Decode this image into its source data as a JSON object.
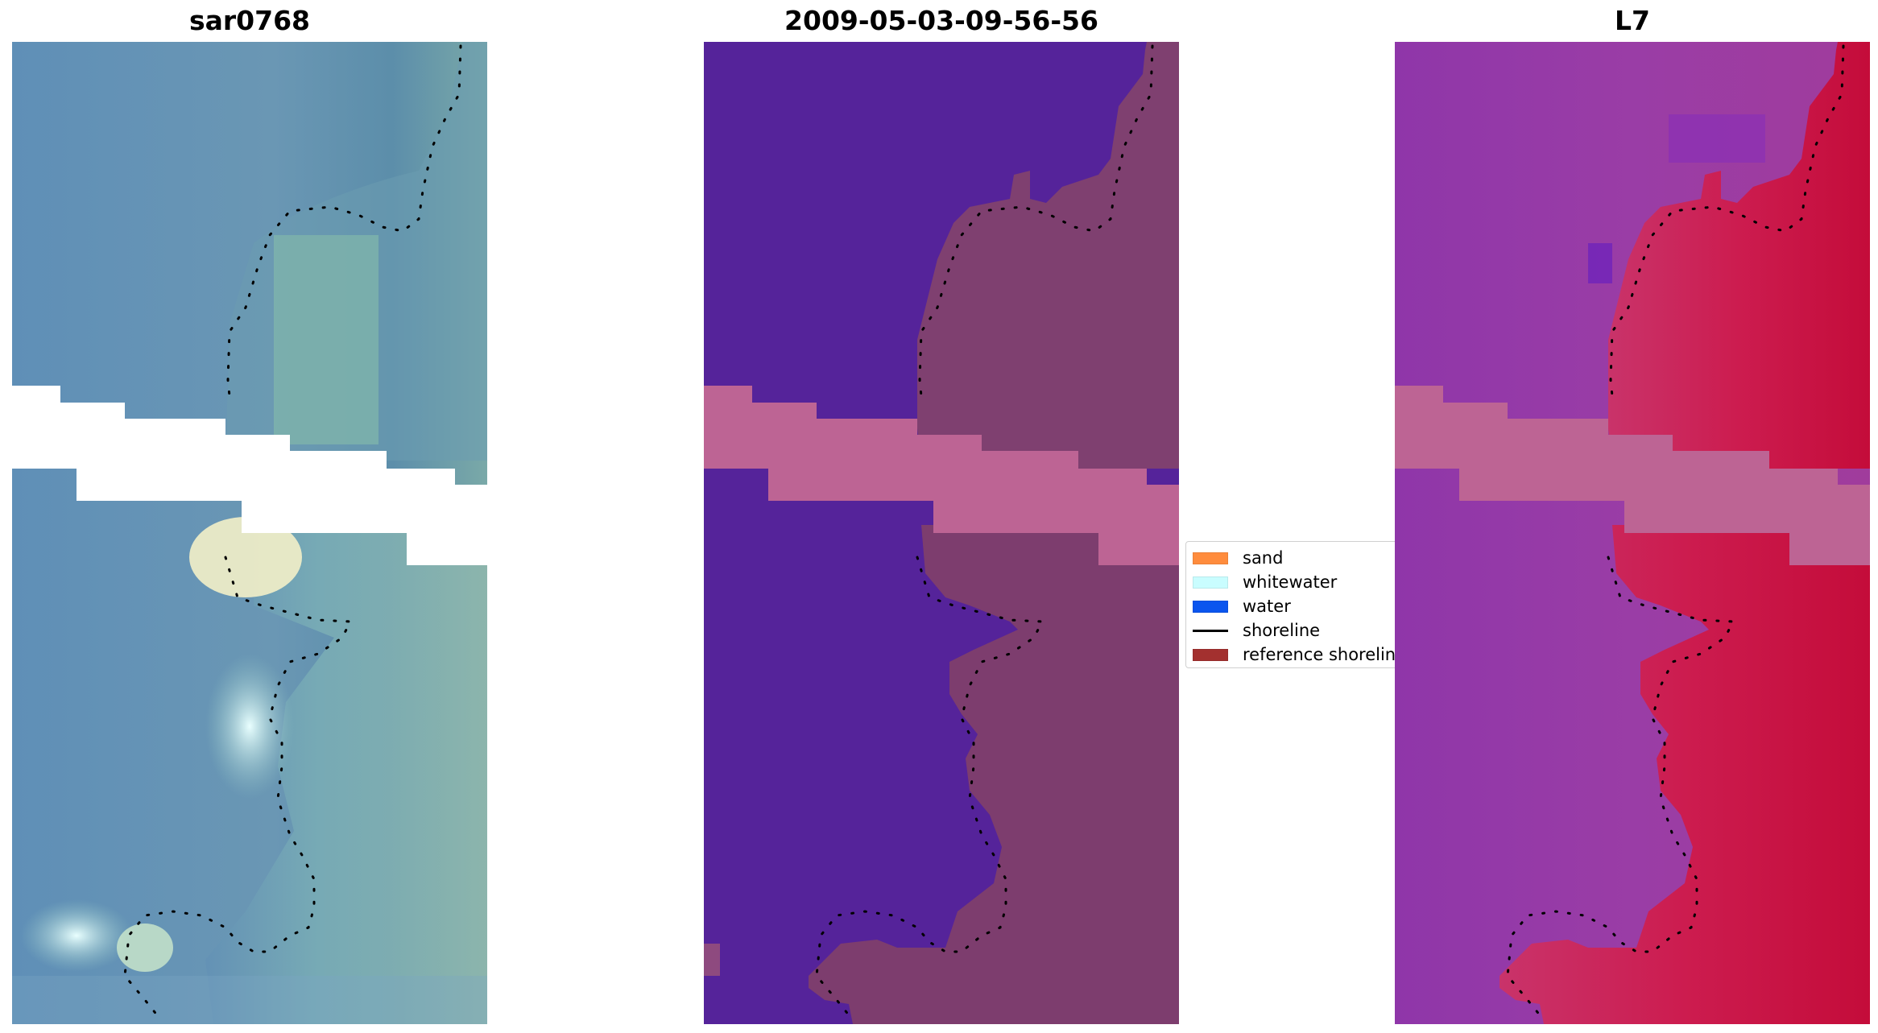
{
  "panels": [
    {
      "title": "sar0768"
    },
    {
      "title": "2009-05-03-09-56-56"
    },
    {
      "title": "L7"
    }
  ],
  "legend": {
    "items": [
      {
        "label": "sand",
        "color": "#ff8c3d",
        "kind": "patch"
      },
      {
        "label": "whitewater",
        "color": "#c9fdff",
        "kind": "patch"
      },
      {
        "label": "water",
        "color": "#0b55ee",
        "kind": "patch"
      },
      {
        "label": "shoreline",
        "color": "#000000",
        "kind": "line"
      },
      {
        "label": "reference shoreline",
        "color": "#a3302f",
        "kind": "patch"
      }
    ]
  },
  "colors": {
    "rgb_water": "#5f8fb3",
    "rgb_land": "#7fb0a8",
    "rgb_whitewater": "#d9ffff",
    "class_water": "#55239a",
    "class_land": "#7f4070",
    "class_nodata": "#bd6494",
    "index_water": "#8f34a8",
    "index_land": "#cc1b45",
    "index_nodata": "#bd6494",
    "shoreline_dots": "#000000"
  }
}
